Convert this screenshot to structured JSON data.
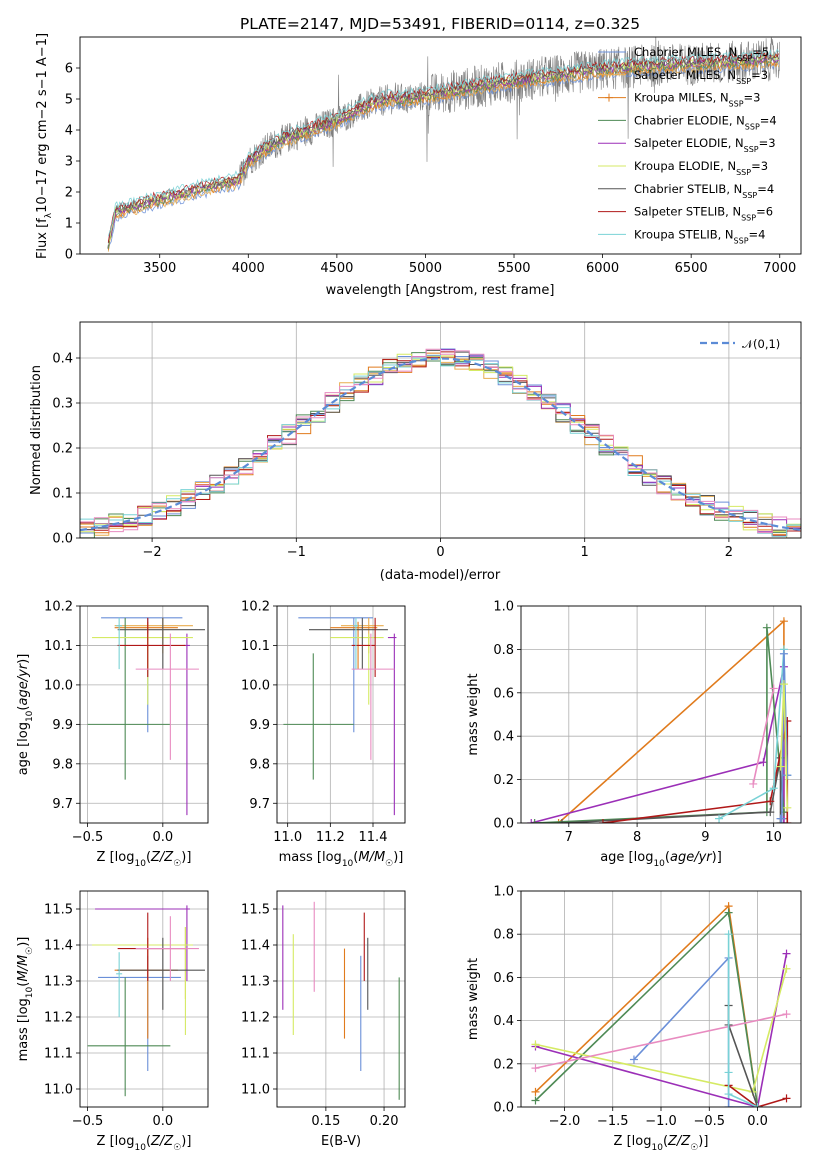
{
  "figure": {
    "title": "PLATE=2147, MJD=53491, FIBERID=0114, z=0.325"
  },
  "colors": {
    "Chabrier MILES": "#6a8fd8",
    "Salpeter MILES": "#e9ad4f",
    "Kroupa MILES": "#e07b1d",
    "Chabrier ELODIE": "#4e8a55",
    "Salpeter ELODIE": "#9b2fb7",
    "Kroupa ELODIE": "#d5ea64",
    "Chabrier STELIB": "#555555",
    "Salpeter STELIB": "#b01818",
    "Kroupa STELIB": "#79d2d6",
    "data": "#7f7f7f",
    "pink": "#e88bc0",
    "gaussian": "#5b8bd6"
  },
  "chart_data": [
    {
      "id": "spectrum",
      "type": "line",
      "xlabel": "wavelength [Angstrom, rest frame]",
      "ylabel": "Flux [f_λ 10^-17 erg cm^-2 s^-1 A^-1]",
      "xlim": [
        3050,
        7120
      ],
      "ylim": [
        0,
        7
      ],
      "xticks": [
        3500,
        4000,
        4500,
        5000,
        5500,
        6000,
        6500,
        7000
      ],
      "yticks": [
        0,
        1,
        2,
        3,
        4,
        5,
        6
      ],
      "legend_position": "top-right",
      "legend": [
        {
          "name": "Chabrier MILES",
          "nssp": "5"
        },
        {
          "name": "Salpeter MILES",
          "nssp": "3"
        },
        {
          "name": "Kroupa MILES",
          "nssp": "3"
        },
        {
          "name": "Chabrier ELODIE",
          "nssp": "4"
        },
        {
          "name": "Salpeter ELODIE",
          "nssp": "3"
        },
        {
          "name": "Kroupa ELODIE",
          "nssp": "3"
        },
        {
          "name": "Chabrier STELIB",
          "nssp": "4"
        },
        {
          "name": "Salpeter STELIB",
          "nssp": "6"
        },
        {
          "name": "Kroupa STELIB",
          "nssp": "4"
        }
      ],
      "continuum": {
        "x": [
          3200,
          3250,
          3400,
          3500,
          3600,
          3700,
          3800,
          3900,
          3950,
          4000,
          4100,
          4200,
          4300,
          4400,
          4500,
          4600,
          4700,
          4800,
          4900,
          5000,
          5200,
          5400,
          5600,
          5800,
          6000,
          6200,
          6400,
          6600,
          6800,
          7000
        ],
        "y": [
          0,
          1.35,
          1.6,
          1.75,
          1.9,
          2.05,
          2.2,
          2.3,
          2.4,
          3.0,
          3.4,
          3.7,
          3.9,
          4.1,
          4.3,
          4.6,
          4.85,
          5.0,
          5.0,
          5.1,
          5.3,
          5.5,
          5.65,
          5.8,
          5.95,
          6.05,
          6.1,
          6.15,
          6.2,
          6.3
        ]
      }
    },
    {
      "id": "residuals",
      "type": "line",
      "xlabel": "(data-model)/error",
      "ylabel": "Normed distribution",
      "xlim": [
        -2.5,
        2.5
      ],
      "ylim": [
        0,
        0.48
      ],
      "xticks": [
        -2,
        -1,
        0,
        1,
        2
      ],
      "yticks": [
        0.0,
        0.1,
        0.2,
        0.3,
        0.4
      ],
      "grid": true,
      "legend_position": "top-right",
      "legend_label": "𝒩(0,1)",
      "gaussian": {
        "mean": 0,
        "sigma": 1
      }
    },
    {
      "id": "age-vs-Z",
      "type": "scatter",
      "xlabel": "Z [log10(Z/Z☉)]",
      "ylabel": "age [log10(age/yr)]",
      "xlim": [
        -0.55,
        0.3
      ],
      "ylim": [
        9.65,
        10.2
      ],
      "xticks": [
        -0.5,
        0.0
      ],
      "yticks": [
        9.7,
        9.8,
        9.9,
        10.0,
        10.1,
        10.2
      ],
      "grid": true,
      "points": [
        {
          "c": "Chabrier MILES",
          "x": -0.1,
          "y": 10.17,
          "xe": [
            -0.41,
            0.13
          ],
          "ye": [
            9.88,
            10.17
          ]
        },
        {
          "c": "Salpeter MILES",
          "x": 0.0,
          "y": 10.15,
          "xe": [
            -0.32,
            0.2
          ],
          "ye": [
            10.08,
            10.17
          ]
        },
        {
          "c": "Kroupa MILES",
          "x": -0.1,
          "y": 10.145,
          "xe": [
            -0.32,
            0.1
          ],
          "ye": [
            10.04,
            10.16
          ]
        },
        {
          "c": "Chabrier ELODIE",
          "x": -0.25,
          "y": 9.9,
          "xe": [
            -0.5,
            0.05
          ],
          "ye": [
            9.76,
            10.17
          ]
        },
        {
          "c": "Salpeter ELODIE",
          "x": 0.16,
          "y": 10.1,
          "xe": [
            0.14,
            0.18
          ],
          "ye": [
            9.67,
            10.13
          ]
        },
        {
          "c": "Kroupa ELODIE",
          "x": -0.1,
          "y": 10.12,
          "xe": [
            -0.47,
            0.2
          ],
          "ye": [
            9.95,
            10.13
          ]
        },
        {
          "c": "Chabrier STELIB",
          "x": 0.0,
          "y": 10.14,
          "xe": [
            -0.3,
            0.28
          ],
          "ye": [
            10.04,
            10.17
          ]
        },
        {
          "c": "Salpeter STELIB",
          "x": -0.1,
          "y": 10.1,
          "xe": [
            -0.3,
            0.15
          ],
          "ye": [
            10.02,
            10.17
          ]
        },
        {
          "c": "pink",
          "x": 0.05,
          "y": 10.04,
          "xe": [
            -0.18,
            0.24
          ],
          "ye": [
            9.81,
            10.13
          ]
        },
        {
          "c": "Kroupa STELIB",
          "x": -0.29,
          "y": 10.15,
          "xe": [
            -0.31,
            -0.27
          ],
          "ye": [
            10.04,
            10.17
          ]
        }
      ]
    },
    {
      "id": "age-vs-mass",
      "type": "scatter",
      "xlabel": "mass [log10(M/M☉)]",
      "ylabel": "",
      "xlim": [
        10.95,
        11.55
      ],
      "ylim": [
        9.65,
        10.2
      ],
      "xticks": [
        11.0,
        11.2,
        11.4
      ],
      "yticks": [
        9.7,
        9.8,
        9.9,
        10.0,
        10.1,
        10.2
      ],
      "grid": true,
      "points": [
        {
          "c": "Chabrier MILES",
          "x": 11.31,
          "y": 10.17,
          "xe": [
            11.05,
            11.4
          ],
          "ye": [
            9.88,
            10.17
          ]
        },
        {
          "c": "Salpeter MILES",
          "x": 11.38,
          "y": 10.15,
          "xe": [
            11.25,
            11.45
          ],
          "ye": [
            10.08,
            10.17
          ]
        },
        {
          "c": "Kroupa MILES",
          "x": 11.33,
          "y": 10.145,
          "xe": [
            11.2,
            11.42
          ],
          "ye": [
            10.04,
            10.16
          ]
        },
        {
          "c": "Chabrier ELODIE",
          "x": 11.12,
          "y": 9.9,
          "xe": [
            10.98,
            11.31
          ],
          "ye": [
            9.76,
            10.08
          ]
        },
        {
          "c": "Salpeter ELODIE",
          "x": 11.5,
          "y": 10.12,
          "xe": [
            11.47,
            11.51
          ],
          "ye": [
            9.67,
            10.13
          ]
        },
        {
          "c": "Kroupa ELODIE",
          "x": 11.38,
          "y": 10.12,
          "xe": [
            11.2,
            11.45
          ],
          "ye": [
            9.95,
            10.13
          ]
        },
        {
          "c": "Chabrier STELIB",
          "x": 11.35,
          "y": 10.14,
          "xe": [
            11.1,
            11.47
          ],
          "ye": [
            10.04,
            10.17
          ]
        },
        {
          "c": "Salpeter STELIB",
          "x": 11.41,
          "y": 10.1,
          "xe": [
            11.3,
            11.41
          ],
          "ye": [
            10.02,
            10.17
          ]
        },
        {
          "c": "pink",
          "x": 11.39,
          "y": 10.04,
          "xe": [
            11.3,
            11.5
          ],
          "ye": [
            9.81,
            10.13
          ]
        },
        {
          "c": "Kroupa STELIB",
          "x": 11.32,
          "y": 10.15,
          "xe": [
            11.31,
            11.33
          ],
          "ye": [
            10.04,
            10.17
          ]
        }
      ]
    },
    {
      "id": "massweight-vs-age",
      "type": "line",
      "xlabel": "age [log10(age/yr)]",
      "ylabel": "mass weight",
      "xlim": [
        6.3,
        10.4
      ],
      "ylim": [
        0,
        1.0
      ],
      "xticks": [
        7,
        8,
        9,
        10
      ],
      "yticks": [
        0.0,
        0.2,
        0.4,
        0.6,
        0.8,
        1.0
      ],
      "grid": true,
      "series": [
        {
          "c": "Kroupa MILES",
          "x": [
            6.85,
            10.15,
            10.15,
            10.15
          ],
          "y": [
            0.0,
            0.93,
            0.05,
            0.02
          ]
        },
        {
          "c": "Salpeter ELODIE",
          "x": [
            6.45,
            9.85,
            10.15,
            10.15
          ],
          "y": [
            0.0,
            0.28,
            0.72,
            0.0
          ]
        },
        {
          "c": "Chabrier ELODIE",
          "x": [
            6.5,
            9.9,
            9.9,
            10.15
          ],
          "y": [
            0.0,
            0.05,
            0.9,
            0.05
          ]
        },
        {
          "c": "Chabrier STELIB",
          "x": [
            6.9,
            9.95,
            10.1,
            10.1
          ],
          "y": [
            0.0,
            0.05,
            0.3,
            0.0
          ]
        },
        {
          "c": "Salpeter STELIB",
          "x": [
            7.5,
            9.95,
            10.2,
            10.2
          ],
          "y": [
            0.0,
            0.1,
            0.47,
            0.0
          ]
        },
        {
          "c": "Kroupa STELIB",
          "x": [
            9.2,
            10.0,
            10.15,
            10.2
          ],
          "y": [
            0.02,
            0.16,
            0.8,
            0.22
          ]
        },
        {
          "c": "Chabrier MILES",
          "x": [
            10.1,
            10.12,
            10.15,
            10.2
          ],
          "y": [
            0.02,
            0.02,
            0.78,
            0.22
          ]
        },
        {
          "c": "Kroupa ELODIE",
          "x": [
            10.1,
            10.15,
            10.2
          ],
          "y": [
            0.26,
            0.64,
            0.07
          ]
        },
        {
          "c": "pink",
          "x": [
            9.7,
            10.0
          ],
          "y": [
            0.18,
            0.62
          ]
        }
      ]
    },
    {
      "id": "mass-vs-Z",
      "type": "scatter",
      "xlabel": "Z [log10(Z/Z☉)]",
      "ylabel": "mass [log10(M/M☉)]",
      "xlim": [
        -0.55,
        0.3
      ],
      "ylim": [
        10.95,
        11.55
      ],
      "xticks": [
        -0.5,
        0.0
      ],
      "yticks": [
        11.0,
        11.1,
        11.2,
        11.3,
        11.4,
        11.5
      ],
      "grid": true,
      "points": [
        {
          "c": "Chabrier MILES",
          "x": -0.1,
          "y": 11.31,
          "xe": [
            -0.43,
            0.12
          ],
          "ye": [
            11.05,
            11.37
          ]
        },
        {
          "c": "Salpeter MILES",
          "x": 0.15,
          "y": 11.4,
          "xe": [
            -0.2,
            0.2
          ],
          "ye": [
            11.25,
            11.45
          ]
        },
        {
          "c": "Kroupa MILES",
          "x": -0.1,
          "y": 11.33,
          "xe": [
            -0.32,
            0.1
          ],
          "ye": [
            11.14,
            11.42
          ]
        },
        {
          "c": "Chabrier ELODIE",
          "x": -0.25,
          "y": 11.12,
          "xe": [
            -0.5,
            0.05
          ],
          "ye": [
            10.98,
            11.31
          ]
        },
        {
          "c": "Salpeter ELODIE",
          "x": 0.16,
          "y": 11.5,
          "xe": [
            -0.45,
            0.18
          ],
          "ye": [
            11.3,
            11.51
          ]
        },
        {
          "c": "Kroupa ELODIE",
          "x": 0.15,
          "y": 11.4,
          "xe": [
            -0.47,
            0.2
          ],
          "ye": [
            11.15,
            11.45
          ]
        },
        {
          "c": "Chabrier STELIB",
          "x": 0.0,
          "y": 11.33,
          "xe": [
            -0.3,
            0.28
          ],
          "ye": [
            11.22,
            11.42
          ]
        },
        {
          "c": "Salpeter STELIB",
          "x": -0.1,
          "y": 11.39,
          "xe": [
            -0.3,
            0.15
          ],
          "ye": [
            11.3,
            11.49
          ]
        },
        {
          "c": "pink",
          "x": 0.05,
          "y": 11.39,
          "xe": [
            -0.18,
            0.24
          ],
          "ye": [
            11.3,
            11.48
          ]
        },
        {
          "c": "Kroupa STELIB",
          "x": -0.29,
          "y": 11.32,
          "xe": [
            -0.31,
            -0.27
          ],
          "ye": [
            11.2,
            11.38
          ]
        }
      ]
    },
    {
      "id": "mass-vs-ebv",
      "type": "scatter",
      "xlabel": "E(B-V)",
      "ylabel": "",
      "xlim": [
        0.108,
        0.218
      ],
      "ylim": [
        10.95,
        11.55
      ],
      "xticks": [
        0.15,
        0.2
      ],
      "yticks": [
        11.0,
        11.1,
        11.2,
        11.3,
        11.4,
        11.5
      ],
      "grid": true,
      "vlines": [
        {
          "c": "Salpeter ELODIE",
          "x": 0.113,
          "y": [
            11.22,
            11.51
          ]
        },
        {
          "c": "Kroupa ELODIE",
          "x": 0.122,
          "y": [
            11.15,
            11.43
          ]
        },
        {
          "c": "pink",
          "x": 0.14,
          "y": [
            11.27,
            11.52
          ]
        },
        {
          "c": "Kroupa MILES",
          "x": 0.166,
          "y": [
            11.14,
            11.39
          ]
        },
        {
          "c": "Chabrier MILES",
          "x": 0.18,
          "y": [
            11.05,
            11.37
          ]
        },
        {
          "c": "Salpeter STELIB",
          "x": 0.183,
          "y": [
            11.3,
            11.49
          ]
        },
        {
          "c": "Chabrier STELIB",
          "x": 0.186,
          "y": [
            11.22,
            11.42
          ]
        },
        {
          "c": "Chabrier ELODIE",
          "x": 0.213,
          "y": [
            10.97,
            11.31
          ]
        }
      ]
    },
    {
      "id": "massweight-vs-Z",
      "type": "line",
      "xlabel": "Z [log10(Z/Z☉)]",
      "ylabel": "mass weight",
      "xlim": [
        -2.45,
        0.45
      ],
      "ylim": [
        0,
        1.0
      ],
      "xticks": [
        -2.0,
        -1.5,
        -1.0,
        -0.5,
        0.0
      ],
      "yticks": [
        0.0,
        0.2,
        0.4,
        0.6,
        0.8,
        1.0
      ],
      "grid": true,
      "series": [
        {
          "c": "Kroupa MILES",
          "x": [
            -2.3,
            -0.3,
            0.0
          ],
          "y": [
            0.07,
            0.93,
            0.0
          ]
        },
        {
          "c": "Chabrier ELODIE",
          "x": [
            -2.3,
            -0.3,
            0.0
          ],
          "y": [
            0.03,
            0.9,
            0.0
          ]
        },
        {
          "c": "Chabrier MILES",
          "x": [
            -1.28,
            -0.3,
            -0.3,
            0.0
          ],
          "y": [
            0.22,
            0.69,
            0.0,
            0.0
          ]
        },
        {
          "c": "Salpeter ELODIE",
          "x": [
            -2.3,
            0.0,
            0.3
          ],
          "y": [
            0.28,
            0.0,
            0.71
          ]
        },
        {
          "c": "Kroupa ELODIE",
          "x": [
            -2.3,
            -0.05,
            0.3
          ],
          "y": [
            0.29,
            0.07,
            0.64
          ]
        },
        {
          "c": "pink",
          "x": [
            -2.3,
            0.3
          ],
          "y": [
            0.18,
            0.43
          ]
        },
        {
          "c": "Salpeter STELIB",
          "x": [
            -0.3,
            0.0,
            0.3
          ],
          "y": [
            0.1,
            0.0,
            0.04
          ]
        },
        {
          "c": "Chabrier STELIB",
          "x": [
            -0.3,
            -0.3,
            0.0
          ],
          "y": [
            0.47,
            0.38,
            0.0
          ]
        },
        {
          "c": "Kroupa STELIB",
          "x": [
            -0.3,
            -0.3,
            -0.3,
            0.0
          ],
          "y": [
            0.8,
            0.16,
            0.06,
            0.0
          ]
        }
      ]
    }
  ]
}
